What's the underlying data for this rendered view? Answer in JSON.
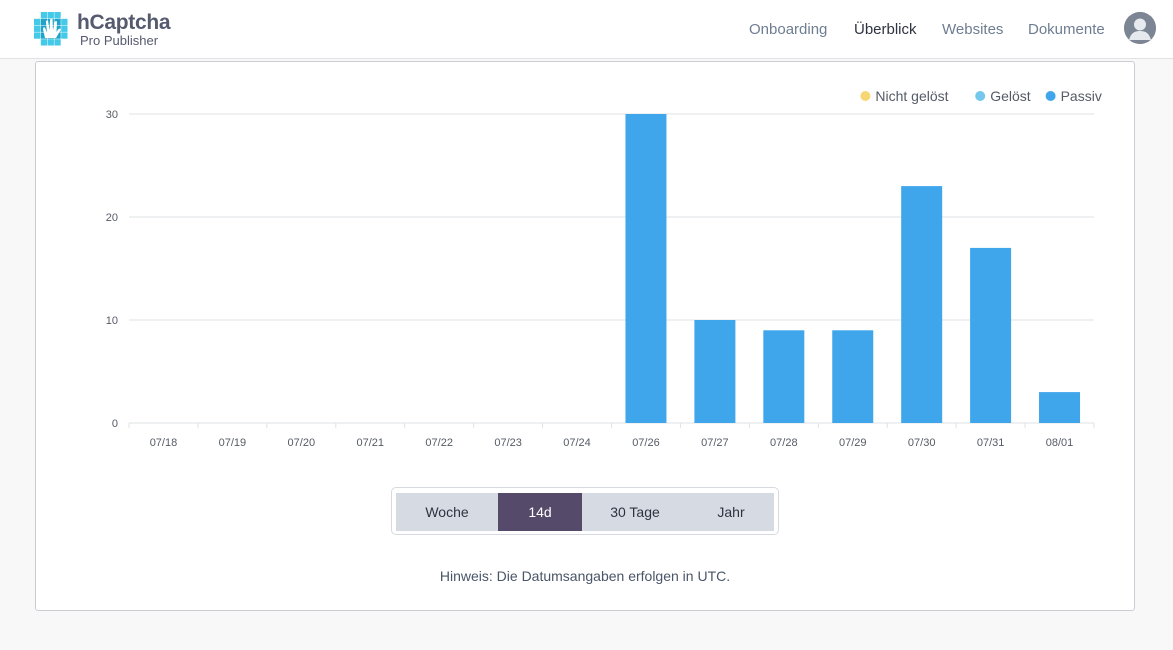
{
  "brand": {
    "name": "hCaptcha",
    "subtitle": "Pro Publisher",
    "colors": [
      "#44c9e8",
      "#1fa3c9",
      "#0f7ea6",
      "#8ddff0"
    ]
  },
  "nav": {
    "items": [
      {
        "label": "Onboarding",
        "active": false
      },
      {
        "label": "Überblick",
        "active": true
      },
      {
        "label": "Websites",
        "active": false
      },
      {
        "label": "Dokumente",
        "active": false
      }
    ],
    "avatar_icon": "user-avatar-icon"
  },
  "range": {
    "options": [
      {
        "label": "Woche",
        "active": false
      },
      {
        "label": "14d",
        "active": true
      },
      {
        "label": "30 Tage",
        "active": false
      },
      {
        "label": "Jahr",
        "active": false
      }
    ]
  },
  "note": "Hinweis: Die Datumsangaben erfolgen in UTC.",
  "chart_data": {
    "type": "bar",
    "title": "",
    "xlabel": "",
    "ylabel": "",
    "categories": [
      "07/18",
      "07/19",
      "07/20",
      "07/21",
      "07/22",
      "07/23",
      "07/24",
      "07/26",
      "07/27",
      "07/28",
      "07/29",
      "07/30",
      "07/31",
      "08/01"
    ],
    "series": [
      {
        "name": "Nicht gelöst",
        "color": "#f7d774",
        "values": [
          0,
          0,
          0,
          0,
          0,
          0,
          0,
          0,
          0,
          0,
          0,
          0,
          0,
          0
        ]
      },
      {
        "name": "Gelöst",
        "color": "#74c8ec",
        "values": [
          0,
          0,
          0,
          0,
          0,
          0,
          0,
          0,
          0,
          0,
          0,
          0,
          0,
          0
        ]
      },
      {
        "name": "Passiv",
        "color": "#40a6ec",
        "values": [
          0,
          0,
          0,
          0,
          0,
          0,
          0,
          30,
          10,
          9,
          9,
          23,
          17,
          3
        ]
      }
    ],
    "stacked": true,
    "ylim": [
      0,
      30
    ],
    "yticks": [
      0,
      10,
      20,
      30
    ],
    "grid": true,
    "legend_position": "top-right"
  }
}
